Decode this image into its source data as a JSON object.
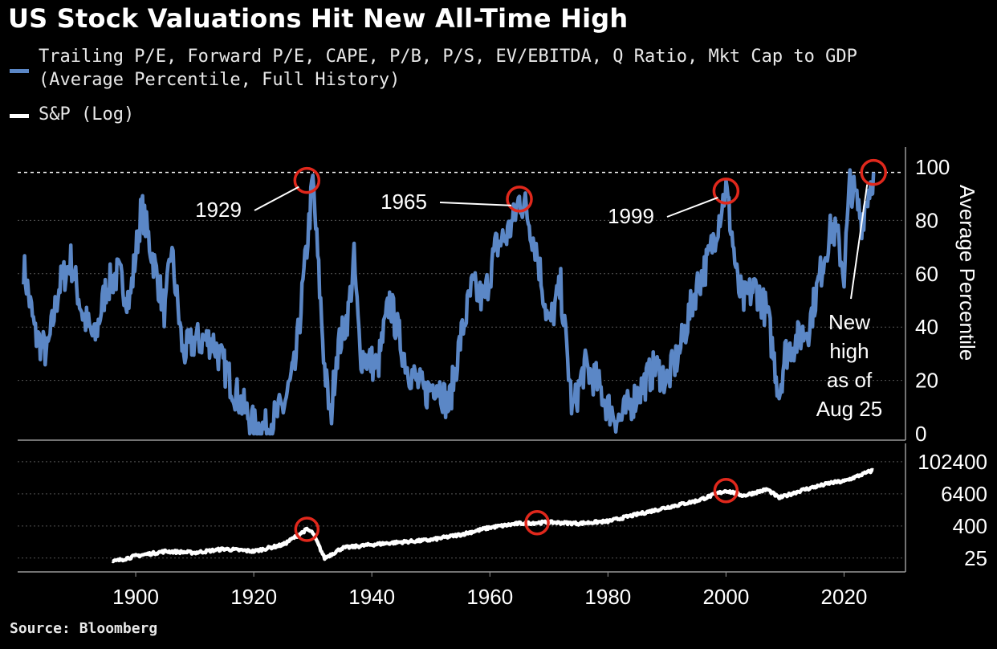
{
  "title": "US Stock Valuations Hit New All-Time High",
  "legend": [
    {
      "line1": "Trailing P/E, Forward P/E, CAPE, P/B, P/S, EV/EBITDA, Q Ratio, Mkt Cap to GDP",
      "line2": "(Average Percentile, Full History)",
      "color": "#5b87c6"
    },
    {
      "line1": "S&P (Log)",
      "line2": "",
      "color": "#ffffff"
    }
  ],
  "source": "Source: Bloomberg",
  "colors": {
    "valuation": "#5b87c6",
    "sp": "#ffffff",
    "highlight": "#e0281c",
    "background": "#000000"
  },
  "chart_data": [
    {
      "type": "line",
      "series": [
        {
          "name": "Trailing P/E, Forward P/E, CAPE, P/B, P/S, EV/EBITDA, Q Ratio, Mkt Cap to GDP (Average Percentile, Full History)",
          "x": [
            1881,
            1883,
            1885,
            1887,
            1889,
            1891,
            1893,
            1895,
            1897,
            1899,
            1901,
            1903,
            1905,
            1906,
            1908,
            1910,
            1913,
            1915,
            1917,
            1920,
            1922,
            1925,
            1927,
            1929,
            1930,
            1932,
            1933,
            1934,
            1936,
            1937,
            1938,
            1941,
            1943,
            1946,
            1949,
            1951,
            1953,
            1955,
            1957,
            1959,
            1961,
            1963,
            1964,
            1965,
            1966,
            1968,
            1970,
            1972,
            1974,
            1976,
            1978,
            1980,
            1982,
            1985,
            1988,
            1990,
            1992,
            1995,
            1997,
            1999,
            2000,
            2001,
            2002,
            2003,
            2005,
            2007,
            2008,
            2009,
            2010,
            2012,
            2014,
            2016,
            2017,
            2018,
            2019,
            2020,
            2021,
            2022,
            2023,
            2024,
            2025
          ],
          "values": [
            63,
            37,
            30,
            55,
            65,
            45,
            35,
            55,
            60,
            50,
            85,
            65,
            45,
            70,
            30,
            35,
            35,
            25,
            15,
            3,
            2,
            10,
            25,
            70,
            95,
            25,
            5,
            30,
            45,
            65,
            30,
            25,
            50,
            25,
            15,
            20,
            10,
            35,
            55,
            50,
            70,
            75,
            80,
            88,
            85,
            68,
            40,
            55,
            8,
            25,
            20,
            10,
            5,
            15,
            25,
            20,
            30,
            55,
            65,
            83,
            92,
            75,
            55,
            50,
            55,
            45,
            30,
            15,
            30,
            35,
            40,
            60,
            70,
            78,
            72,
            60,
            94,
            88,
            80,
            90,
            98
          ]
        }
      ],
      "ylabel": "Average Percentile",
      "ylim": [
        0,
        100
      ],
      "yticks": [
        0,
        20,
        40,
        60,
        80,
        100
      ],
      "reference_line": 98,
      "annotations": [
        {
          "text": "1929",
          "x": 1929,
          "y": 95
        },
        {
          "text": "1965",
          "x": 1965,
          "y": 88
        },
        {
          "text": "1999",
          "x": 2000,
          "y": 91
        },
        {
          "text": "New high as of Aug 25",
          "x": 2025,
          "y": 98
        }
      ],
      "annotation_lines": {
        "new_high": [
          "New",
          "high",
          "as of",
          "Aug 25"
        ]
      }
    },
    {
      "type": "line",
      "series": [
        {
          "name": "S&P (Log)",
          "x": [
            1896,
            1900,
            1905,
            1910,
            1915,
            1920,
            1925,
            1929,
            1930,
            1932,
            1935,
            1940,
            1945,
            1950,
            1955,
            1960,
            1965,
            1970,
            1975,
            1980,
            1985,
            1990,
            1995,
            2000,
            2003,
            2007,
            2009,
            2013,
            2018,
            2020,
            2025
          ],
          "values": [
            18,
            30,
            45,
            40,
            55,
            45,
            80,
            300,
            220,
            25,
            60,
            80,
            100,
            120,
            190,
            350,
            500,
            550,
            500,
            600,
            1100,
            2000,
            3500,
            8500,
            5500,
            9500,
            4500,
            9000,
            17000,
            19000,
            50000
          ]
        }
      ],
      "scale": "log",
      "yticks": [
        25,
        400,
        6400,
        102400
      ],
      "ylim": [
        10,
        250000
      ],
      "highlights": [
        1929,
        1968,
        2000
      ]
    }
  ],
  "x_axis": {
    "ticks": [
      1900,
      1920,
      1940,
      1960,
      1980,
      2000,
      2020
    ],
    "range": [
      1880,
      2030
    ]
  }
}
